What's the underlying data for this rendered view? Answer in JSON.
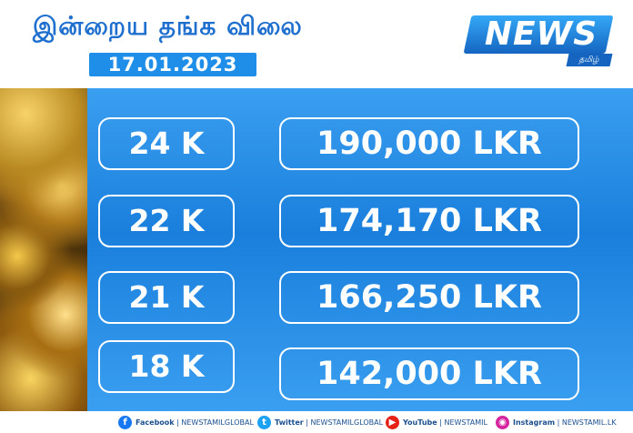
{
  "header": {
    "title": "இன்றைய தங்க விலை",
    "date": "17.01.2023",
    "logo_text": "NEWS",
    "logo_subtext": "தமிழ்"
  },
  "rates": [
    {
      "karat": "24 K",
      "price": "190,000 LKR"
    },
    {
      "karat": "22 K",
      "price": "174,170 LKR"
    },
    {
      "karat": "21 K",
      "price": "166,250 LKR"
    },
    {
      "karat": "18 K",
      "price": "142,000 LKR"
    }
  ],
  "footer": {
    "socials": [
      {
        "platform": "Facebook",
        "handle": "NEWSTAMILGLOBAL",
        "icon": "facebook-icon",
        "color": "#1877f2"
      },
      {
        "platform": "Twitter",
        "handle": "NEWSTAMILGLOBAL",
        "icon": "twitter-icon",
        "color": "#1da1f2"
      },
      {
        "platform": "YouTube",
        "handle": "NEWSTAMIL",
        "icon": "youtube-icon",
        "color": "#e62117"
      },
      {
        "platform": "Instagram",
        "handle": "NEWSTAMIL.LK",
        "icon": "instagram-icon",
        "color": "#d6249f"
      }
    ]
  },
  "colors": {
    "accent": "#1f8ee8",
    "title": "#1f6fcf",
    "panel": "#2a8fe8"
  }
}
